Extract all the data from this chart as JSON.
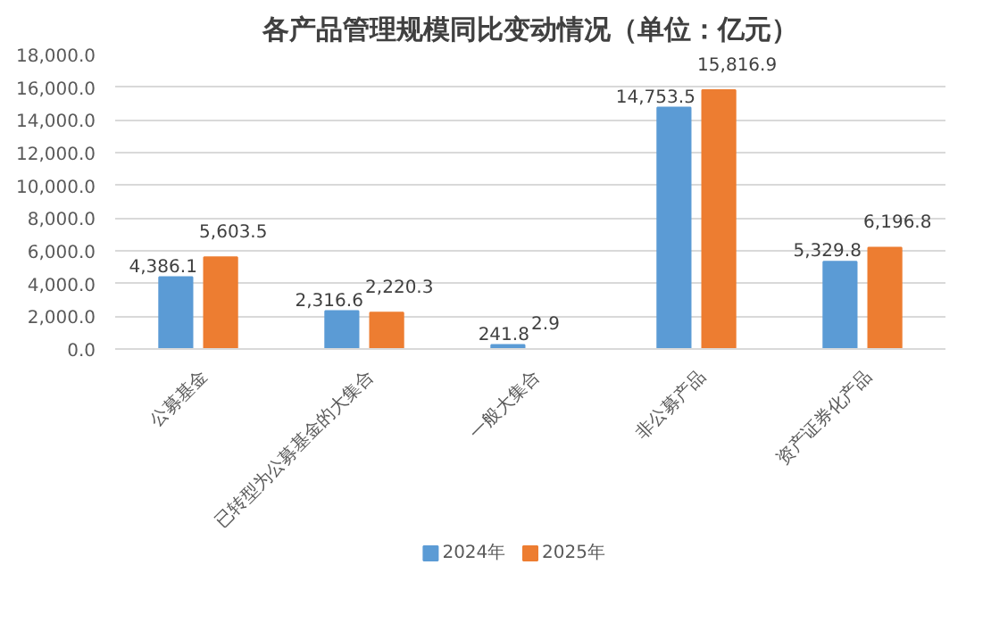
{
  "chart_data": {
    "type": "bar",
    "title": "各产品管理规模同比变动情况（单位：亿元）",
    "categories": [
      "公募基金",
      "已转型为公募基金的大集合",
      "一般大集合",
      "非公募产品",
      "资产证券化产品"
    ],
    "series": [
      {
        "name": "2024年",
        "color": "#5b9bd5",
        "values": [
          4386.1,
          2316.6,
          241.8,
          14753.5,
          5329.8
        ],
        "value_labels": [
          "4,386.1",
          "2,316.6",
          "241.8",
          "14,753.5",
          "5,329.8"
        ]
      },
      {
        "name": "2025年",
        "color": "#ed7d31",
        "values": [
          5603.5,
          2220.3,
          2.9,
          15816.9,
          6196.8
        ],
        "value_labels": [
          "5,603.5",
          "2,220.3",
          "2.9",
          "15,816.9",
          "6,196.8"
        ]
      }
    ],
    "ylim": [
      0,
      18000
    ],
    "yticks": [
      {
        "value": 0,
        "label": "0.0"
      },
      {
        "value": 2000,
        "label": "2,000.0"
      },
      {
        "value": 4000,
        "label": "4,000.0"
      },
      {
        "value": 6000,
        "label": "6,000.0"
      },
      {
        "value": 8000,
        "label": "8,000.0"
      },
      {
        "value": 10000,
        "label": "10,000.0"
      },
      {
        "value": 12000,
        "label": "12,000.0"
      },
      {
        "value": 14000,
        "label": "14,000.0"
      },
      {
        "value": 16000,
        "label": "16,000.0"
      },
      {
        "value": 18000,
        "label": "18,000.0"
      }
    ],
    "grid": "y",
    "legend": "bottom"
  }
}
